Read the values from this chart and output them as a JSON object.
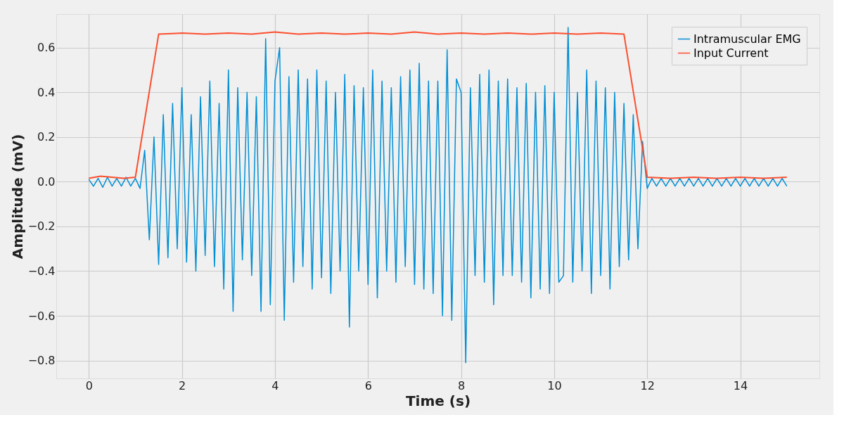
{
  "chart_data": {
    "type": "line",
    "xlabel": "Time (s)",
    "ylabel": "Amplitude (mV)",
    "xlim": [
      -0.7,
      15.7
    ],
    "ylim": [
      -0.88,
      0.75
    ],
    "xticks": [
      0,
      2,
      4,
      6,
      8,
      10,
      12,
      14
    ],
    "yticks": [
      {
        "value": -0.8,
        "label": "−0.8"
      },
      {
        "value": -0.6,
        "label": "−0.6"
      },
      {
        "value": -0.4,
        "label": "−0.4"
      },
      {
        "value": -0.2,
        "label": "−0.2"
      },
      {
        "value": 0,
        "label": "0.0"
      },
      0.2,
      0.4,
      0.6
    ],
    "grid": true,
    "legend": "top right",
    "line_style": "solid",
    "marker": "none",
    "series": [
      {
        "name": "Intramuscular EMG",
        "color": "#008fd5",
        "x": [
          0.0,
          0.1,
          0.2,
          0.3,
          0.4,
          0.5,
          0.6,
          0.7,
          0.8,
          0.9,
          1.0,
          1.1,
          1.2,
          1.3,
          1.4,
          1.5,
          1.6,
          1.7,
          1.8,
          1.9,
          2.0,
          2.1,
          2.2,
          2.3,
          2.4,
          2.5,
          2.6,
          2.7,
          2.8,
          2.9,
          3.0,
          3.1,
          3.2,
          3.3,
          3.4,
          3.5,
          3.6,
          3.7,
          3.8,
          3.9,
          4.0,
          4.1,
          4.2,
          4.3,
          4.4,
          4.5,
          4.6,
          4.7,
          4.8,
          4.9,
          5.0,
          5.1,
          5.2,
          5.3,
          5.4,
          5.5,
          5.6,
          5.7,
          5.8,
          5.9,
          6.0,
          6.1,
          6.2,
          6.3,
          6.4,
          6.5,
          6.6,
          6.7,
          6.8,
          6.9,
          7.0,
          7.1,
          7.2,
          7.3,
          7.4,
          7.5,
          7.6,
          7.7,
          7.8,
          7.9,
          8.0,
          8.1,
          8.2,
          8.3,
          8.4,
          8.5,
          8.6,
          8.7,
          8.8,
          8.9,
          9.0,
          9.1,
          9.2,
          9.3,
          9.4,
          9.5,
          9.6,
          9.7,
          9.8,
          9.9,
          10.0,
          10.1,
          10.2,
          10.3,
          10.4,
          10.5,
          10.6,
          10.7,
          10.8,
          10.9,
          11.0,
          11.1,
          11.2,
          11.3,
          11.4,
          11.5,
          11.6,
          11.7,
          11.8,
          11.9,
          12.0,
          12.1,
          12.2,
          12.3,
          12.4,
          12.5,
          12.6,
          12.7,
          12.8,
          12.9,
          13.0,
          13.1,
          13.2,
          13.3,
          13.4,
          13.5,
          13.6,
          13.7,
          13.8,
          13.9,
          14.0,
          14.1,
          14.2,
          14.3,
          14.4,
          14.5,
          14.6,
          14.7,
          14.8,
          14.9,
          15.0
        ],
        "values": [
          0.01,
          -0.02,
          0.015,
          -0.025,
          0.02,
          -0.02,
          0.015,
          -0.02,
          0.02,
          -0.02,
          0.015,
          -0.03,
          0.14,
          -0.26,
          0.2,
          -0.37,
          0.3,
          -0.34,
          0.35,
          -0.3,
          0.42,
          -0.36,
          0.3,
          -0.4,
          0.38,
          -0.33,
          0.45,
          -0.38,
          0.35,
          -0.48,
          0.5,
          -0.58,
          0.42,
          -0.35,
          0.4,
          -0.42,
          0.38,
          -0.58,
          0.64,
          -0.55,
          0.45,
          0.6,
          -0.62,
          0.47,
          -0.45,
          0.5,
          -0.38,
          0.46,
          -0.48,
          0.5,
          -0.43,
          0.45,
          -0.5,
          0.4,
          -0.4,
          0.48,
          -0.65,
          0.43,
          -0.4,
          0.42,
          -0.46,
          0.5,
          -0.52,
          0.45,
          -0.4,
          0.42,
          -0.45,
          0.47,
          -0.38,
          0.5,
          -0.46,
          0.53,
          -0.48,
          0.45,
          -0.5,
          0.45,
          -0.6,
          0.59,
          -0.62,
          0.46,
          0.4,
          -0.81,
          0.42,
          -0.42,
          0.48,
          -0.45,
          0.5,
          -0.55,
          0.45,
          -0.42,
          0.46,
          -0.42,
          0.42,
          -0.45,
          0.44,
          -0.52,
          0.4,
          -0.48,
          0.43,
          -0.5,
          0.4,
          -0.45,
          -0.42,
          0.69,
          -0.45,
          0.4,
          -0.4,
          0.5,
          -0.5,
          0.45,
          -0.42,
          0.42,
          -0.48,
          0.4,
          -0.38,
          0.35,
          -0.35,
          0.3,
          -0.3,
          0.18,
          -0.03,
          0.015,
          -0.02,
          0.015,
          -0.02,
          0.015,
          -0.02,
          0.015,
          -0.02,
          0.015,
          -0.02,
          0.015,
          -0.02,
          0.015,
          -0.02,
          0.015,
          -0.02,
          0.015,
          -0.02,
          0.015,
          -0.02,
          0.015,
          -0.02,
          0.015,
          -0.02,
          0.015,
          -0.02,
          0.015,
          -0.02,
          0.015,
          -0.02
        ]
      },
      {
        "name": "Input Current",
        "color": "#fc4f30",
        "x": [
          0.0,
          0.25,
          0.5,
          0.75,
          1.0,
          1.5,
          2.0,
          2.5,
          3.0,
          3.5,
          4.0,
          4.5,
          5.0,
          5.5,
          6.0,
          6.5,
          7.0,
          7.5,
          8.0,
          8.5,
          9.0,
          9.5,
          10.0,
          10.5,
          11.0,
          11.5,
          12.0,
          12.5,
          13.0,
          13.5,
          14.0,
          14.5,
          15.0
        ],
        "values": [
          0.015,
          0.025,
          0.02,
          0.015,
          0.02,
          0.66,
          0.665,
          0.66,
          0.665,
          0.66,
          0.67,
          0.66,
          0.665,
          0.66,
          0.665,
          0.66,
          0.67,
          0.66,
          0.665,
          0.66,
          0.665,
          0.66,
          0.665,
          0.66,
          0.665,
          0.66,
          0.02,
          0.015,
          0.02,
          0.015,
          0.02,
          0.015,
          0.02
        ]
      }
    ]
  }
}
